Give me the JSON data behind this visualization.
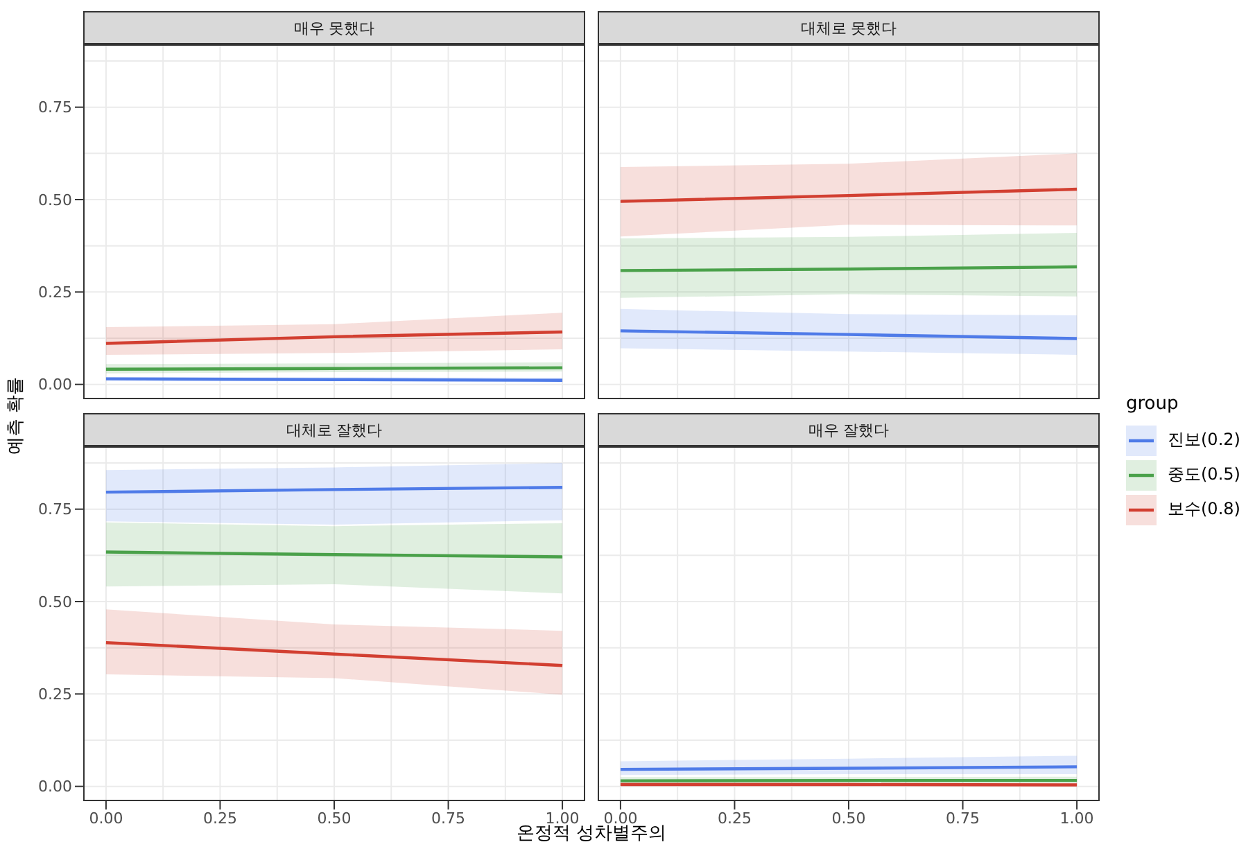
{
  "chart_data": [
    {
      "type": "line",
      "title": "매우 못했다",
      "x": [
        0,
        0.5,
        1
      ],
      "xlim": [
        -0.05,
        1.05
      ],
      "ylim": [
        -0.04,
        0.92
      ],
      "xticks": [
        0,
        0.25,
        0.5,
        0.75,
        1
      ],
      "yticks": [
        {
          "value": 0,
          "label": "0.00"
        },
        {
          "value": 0.25,
          "label": "0.25"
        },
        {
          "value": 0.5,
          "label": "0.50"
        },
        {
          "value": 0.75,
          "label": "0.75"
        }
      ],
      "grid": true,
      "tick_labels": "y",
      "ylabel": "예측 확률",
      "legend": "right",
      "legend_title": "group",
      "series": [
        {
          "name": "진보(0.2)",
          "color": "#4f7be8",
          "values": [
            0.015,
            0.013,
            0.011
          ],
          "lower": [
            0.01,
            0.009,
            0.007
          ],
          "upper": [
            0.02,
            0.019,
            0.018
          ]
        },
        {
          "name": "중도(0.5)",
          "color": "#4aa14a",
          "values": [
            0.041,
            0.043,
            0.045
          ],
          "lower": [
            0.03,
            0.033,
            0.035
          ],
          "upper": [
            0.055,
            0.057,
            0.06
          ]
        },
        {
          "name": "보수(0.8)",
          "color": "#d23f31",
          "values": [
            0.111,
            0.129,
            0.142
          ],
          "lower": [
            0.08,
            0.085,
            0.095
          ],
          "upper": [
            0.155,
            0.163,
            0.194
          ]
        }
      ]
    },
    {
      "type": "line",
      "title": "대체로 못했다",
      "x": [
        0,
        0.5,
        1
      ],
      "xlim": [
        -0.05,
        1.05
      ],
      "ylim": [
        -0.04,
        0.92
      ],
      "xticks": [
        0,
        0.25,
        0.5,
        0.75,
        1
      ],
      "yticks": [
        0,
        0.25,
        0.5,
        0.75
      ],
      "grid": true,
      "tick_labels": false,
      "series": [
        {
          "color": "#4f7be8",
          "values": [
            0.145,
            0.135,
            0.124
          ],
          "lower": [
            0.098,
            0.089,
            0.08
          ],
          "upper": [
            0.204,
            0.19,
            0.187
          ]
        },
        {
          "color": "#4aa14a",
          "values": [
            0.308,
            0.312,
            0.318
          ],
          "lower": [
            0.234,
            0.244,
            0.238
          ],
          "upper": [
            0.395,
            0.399,
            0.41
          ]
        },
        {
          "color": "#d23f31",
          "values": [
            0.495,
            0.511,
            0.528
          ],
          "lower": [
            0.4,
            0.432,
            0.43
          ],
          "upper": [
            0.588,
            0.597,
            0.625
          ]
        }
      ]
    },
    {
      "type": "line",
      "title": "대체로 잘했다",
      "x": [
        0,
        0.5,
        1
      ],
      "xlim": [
        -0.05,
        1.05
      ],
      "ylim": [
        -0.04,
        0.92
      ],
      "xticks": [
        {
          "value": 0,
          "label": "0.00"
        },
        {
          "value": 0.25,
          "label": "0.25"
        },
        {
          "value": 0.5,
          "label": "0.50"
        },
        {
          "value": 0.75,
          "label": "0.75"
        },
        {
          "value": 1,
          "label": "1.00"
        }
      ],
      "yticks": [
        {
          "value": 0,
          "label": "0.00"
        },
        {
          "value": 0.25,
          "label": "0.25"
        },
        {
          "value": 0.5,
          "label": "0.50"
        },
        {
          "value": 0.75,
          "label": "0.75"
        }
      ],
      "grid": true,
      "xlabel": "온정적 성차별주의",
      "series": [
        {
          "color": "#4f7be8",
          "values": [
            0.796,
            0.803,
            0.809
          ],
          "lower": [
            0.717,
            0.708,
            0.72
          ],
          "upper": [
            0.856,
            0.863,
            0.875
          ]
        },
        {
          "color": "#4aa14a",
          "values": [
            0.634,
            0.627,
            0.621
          ],
          "lower": [
            0.541,
            0.547,
            0.522
          ],
          "upper": [
            0.714,
            0.704,
            0.712
          ]
        },
        {
          "color": "#d23f31",
          "values": [
            0.389,
            0.358,
            0.327
          ],
          "lower": [
            0.303,
            0.293,
            0.248
          ],
          "upper": [
            0.479,
            0.438,
            0.421
          ]
        }
      ]
    },
    {
      "type": "line",
      "title": "매우 잘했다",
      "x": [
        0,
        0.5,
        1
      ],
      "xlim": [
        -0.05,
        1.05
      ],
      "ylim": [
        -0.04,
        0.92
      ],
      "xticks": [
        {
          "value": 0,
          "label": "0.00"
        },
        {
          "value": 0.25,
          "label": "0.25"
        },
        {
          "value": 0.5,
          "label": "0.50"
        },
        {
          "value": 0.75,
          "label": "0.75"
        },
        {
          "value": 1,
          "label": "1.00"
        }
      ],
      "yticks": [
        0,
        0.25,
        0.5,
        0.75
      ],
      "grid": true,
      "tick_labels": "x",
      "series": [
        {
          "color": "#4f7be8",
          "values": [
            0.046,
            0.049,
            0.053
          ],
          "lower": [
            0.031,
            0.033,
            0.033
          ],
          "upper": [
            0.068,
            0.075,
            0.083
          ]
        },
        {
          "color": "#4aa14a",
          "values": [
            0.015,
            0.016,
            0.016
          ],
          "lower": [
            0.01,
            0.01,
            0.01
          ],
          "upper": [
            0.025,
            0.025,
            0.026
          ]
        },
        {
          "color": "#d23f31",
          "values": [
            0.005,
            0.005,
            0.004
          ],
          "lower": [
            0.002,
            0.002,
            0.001
          ],
          "upper": [
            0.01,
            0.01,
            0.009
          ]
        }
      ]
    }
  ]
}
